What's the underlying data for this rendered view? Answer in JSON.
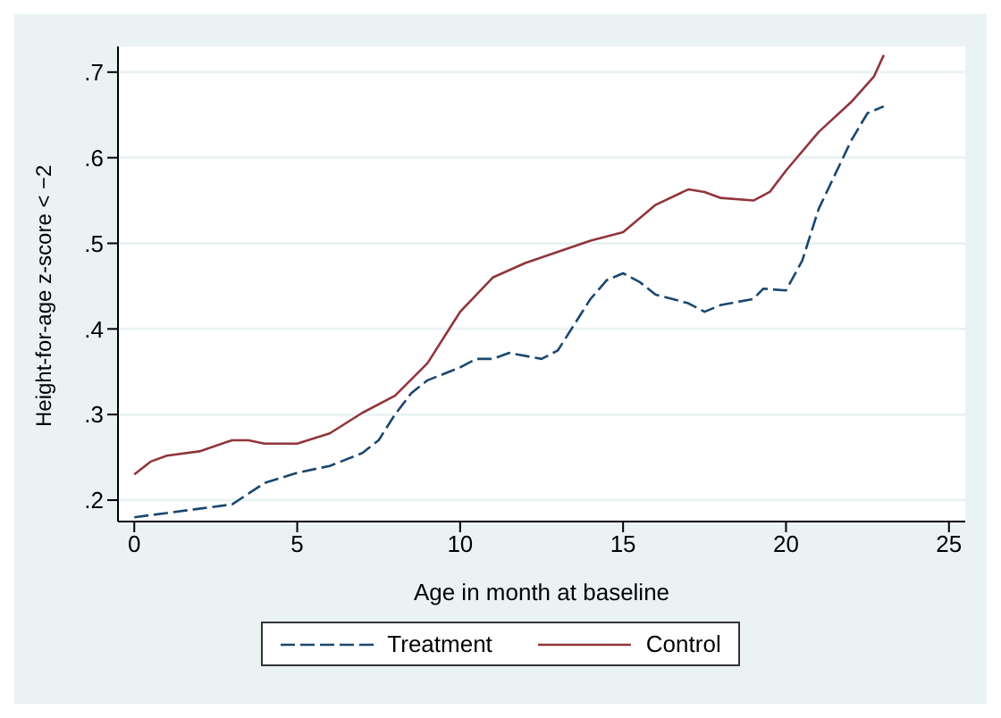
{
  "chart_data": {
    "type": "line",
    "xlabel": "Age in month at baseline",
    "ylabel": "Height-for-age z-score < −2",
    "xlim": [
      -0.5,
      25.5
    ],
    "xticks": [
      0,
      5,
      10,
      15,
      20,
      25
    ],
    "ylim": [
      0.175,
      0.73
    ],
    "yticks": [
      {
        "value": 0.2,
        "label": ".2"
      },
      {
        "value": 0.3,
        "label": ".3"
      },
      {
        "value": 0.4,
        "label": ".4"
      },
      {
        "value": 0.5,
        "label": ".5"
      },
      {
        "value": 0.6,
        "label": ".6"
      },
      {
        "value": 0.7,
        "label": ".7"
      }
    ],
    "grid": "y",
    "legend": "bottom",
    "marker": "none",
    "series": [
      {
        "name": "Treatment",
        "color": "#1a476f",
        "line_style": "dashed",
        "x": [
          0,
          1,
          2,
          3,
          4,
          5,
          6,
          7,
          7.5,
          8,
          8.5,
          9,
          10,
          10.5,
          11,
          11.5,
          12.5,
          13,
          13.5,
          14,
          14.5,
          15,
          15.5,
          16,
          17,
          17.5,
          18,
          19,
          19.3,
          20,
          20.5,
          21,
          22,
          22.5,
          23
        ],
        "values": [
          0.18,
          0.185,
          0.19,
          0.195,
          0.22,
          0.232,
          0.24,
          0.255,
          0.27,
          0.3,
          0.325,
          0.34,
          0.355,
          0.365,
          0.365,
          0.372,
          0.365,
          0.375,
          0.405,
          0.435,
          0.457,
          0.465,
          0.455,
          0.44,
          0.43,
          0.42,
          0.428,
          0.435,
          0.447,
          0.445,
          0.48,
          0.54,
          0.62,
          0.652,
          0.66
        ]
      },
      {
        "name": "Control",
        "color": "#90353b",
        "line_style": "solid",
        "x": [
          0,
          0.5,
          1,
          2,
          3,
          3.5,
          4,
          5,
          6,
          7,
          8,
          9,
          10,
          11,
          12,
          13,
          14,
          15,
          16,
          17,
          17.5,
          18,
          19,
          19.5,
          20,
          21,
          22,
          22.7,
          23
        ],
        "values": [
          0.23,
          0.245,
          0.252,
          0.257,
          0.27,
          0.27,
          0.266,
          0.266,
          0.278,
          0.302,
          0.322,
          0.36,
          0.42,
          0.46,
          0.477,
          0.49,
          0.503,
          0.513,
          0.545,
          0.563,
          0.56,
          0.553,
          0.55,
          0.56,
          0.585,
          0.63,
          0.665,
          0.695,
          0.72
        ]
      }
    ]
  }
}
